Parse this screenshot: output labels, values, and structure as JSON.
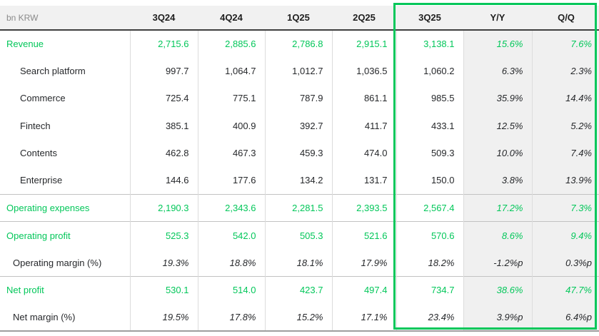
{
  "colors": {
    "accent_green": "#03c75a",
    "header_bg": "#f1f1f1",
    "highlight_column_bg": "#f0f0f0",
    "text_dark": "#26282b",
    "unit_text_grey": "#8a8a8a"
  },
  "highlight": {
    "name": "3Q25-YY-QQ-highlight-box",
    "columns": [
      "3Q25",
      "Y/Y",
      "Q/Q"
    ]
  },
  "table": {
    "unit_label": "bn KRW",
    "headers": [
      "bn KRW",
      "3Q24",
      "4Q24",
      "1Q25",
      "2Q25",
      "3Q25",
      "Y/Y",
      "Q/Q"
    ],
    "rows": [
      {
        "label": "Revenue",
        "type": "total",
        "section_start": false,
        "values": [
          "2,715.6",
          "2,885.6",
          "2,786.8",
          "2,915.1",
          "3,138.1",
          "15.6%",
          "7.6%"
        ]
      },
      {
        "label": "Search platform",
        "type": "sub",
        "section_start": false,
        "values": [
          "997.7",
          "1,064.7",
          "1,012.7",
          "1,036.5",
          "1,060.2",
          "6.3%",
          "2.3%"
        ]
      },
      {
        "label": "Commerce",
        "type": "sub",
        "section_start": false,
        "values": [
          "725.4",
          "775.1",
          "787.9",
          "861.1",
          "985.5",
          "35.9%",
          "14.4%"
        ]
      },
      {
        "label": "Fintech",
        "type": "sub",
        "section_start": false,
        "values": [
          "385.1",
          "400.9",
          "392.7",
          "411.7",
          "433.1",
          "12.5%",
          "5.2%"
        ]
      },
      {
        "label": "Contents",
        "type": "sub",
        "section_start": false,
        "values": [
          "462.8",
          "467.3",
          "459.3",
          "474.0",
          "509.3",
          "10.0%",
          "7.4%"
        ]
      },
      {
        "label": "Enterprise",
        "type": "sub",
        "section_start": false,
        "values": [
          "144.6",
          "177.6",
          "134.2",
          "131.7",
          "150.0",
          "3.8%",
          "13.9%"
        ]
      },
      {
        "label": "Operating expenses",
        "type": "total",
        "section_start": true,
        "values": [
          "2,190.3",
          "2,343.6",
          "2,281.5",
          "2,393.5",
          "2,567.4",
          "17.2%",
          "7.3%"
        ]
      },
      {
        "label": "Operating profit",
        "type": "total",
        "section_start": true,
        "values": [
          "525.3",
          "542.0",
          "505.3",
          "521.6",
          "570.6",
          "8.6%",
          "9.4%"
        ]
      },
      {
        "label": "Operating margin (%)",
        "type": "margin",
        "section_start": false,
        "values": [
          "19.3%",
          "18.8%",
          "18.1%",
          "17.9%",
          "18.2%",
          "-1.2%p",
          "0.3%p"
        ]
      },
      {
        "label": "Net profit",
        "type": "total",
        "section_start": true,
        "values": [
          "530.1",
          "514.0",
          "423.7",
          "497.4",
          "734.7",
          "38.6%",
          "47.7%"
        ]
      },
      {
        "label": "Net margin (%)",
        "type": "margin",
        "section_start": false,
        "values": [
          "19.5%",
          "17.8%",
          "15.2%",
          "17.1%",
          "23.4%",
          "3.9%p",
          "6.4%p"
        ]
      }
    ]
  }
}
